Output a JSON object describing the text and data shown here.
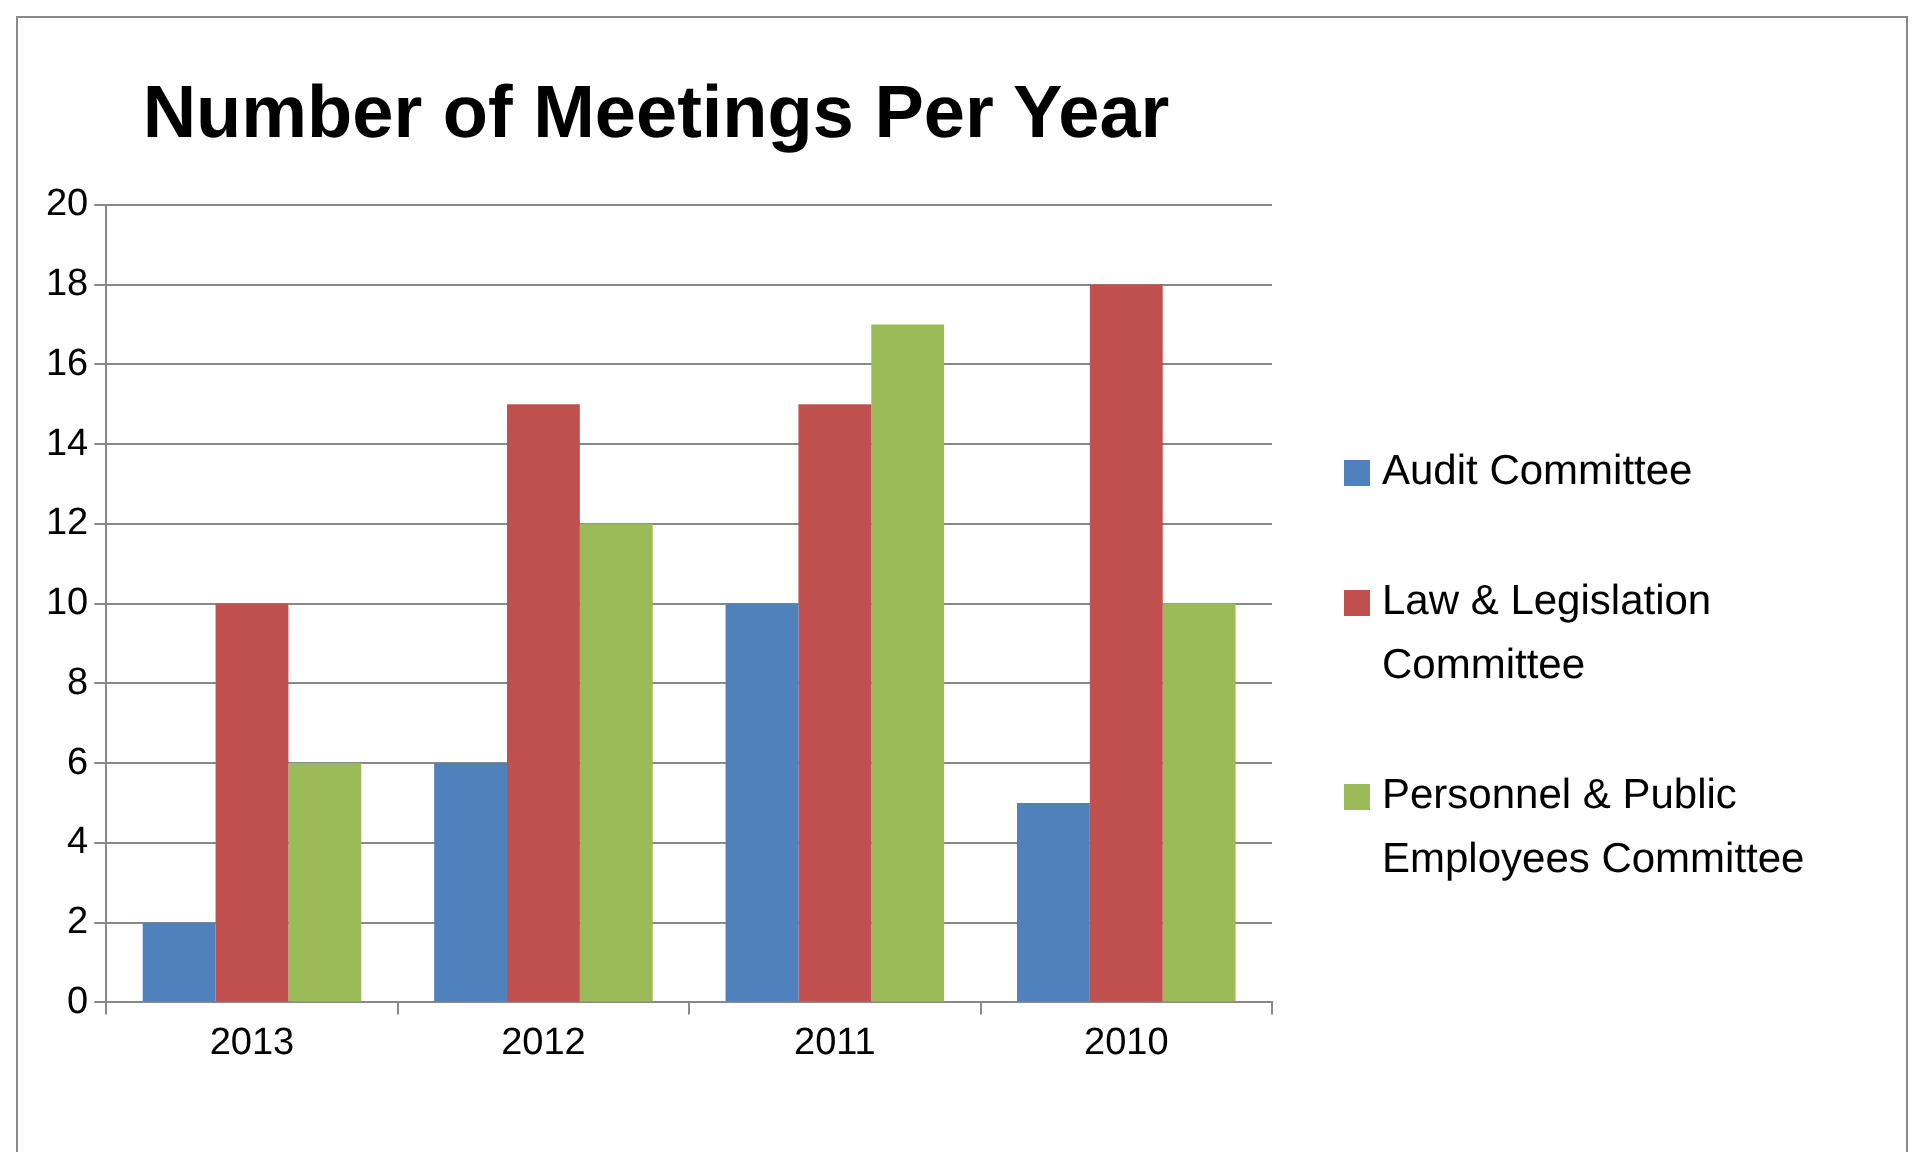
{
  "chart_data": {
    "type": "bar",
    "title": "Number of Meetings Per Year",
    "categories": [
      "2013",
      "2012",
      "2011",
      "2010"
    ],
    "series": [
      {
        "name": "Audit Committee",
        "color": "#4f81bd",
        "values": [
          2,
          6,
          10,
          5
        ]
      },
      {
        "name": "Law & Legislation Committee",
        "color": "#c0504d",
        "values": [
          10,
          15,
          15,
          18
        ]
      },
      {
        "name": "Personnel & Public Employees Committee",
        "color": "#9bbb59",
        "values": [
          6,
          12,
          17,
          10
        ]
      }
    ],
    "ylim": [
      0,
      20
    ],
    "yticks": [
      0,
      2,
      4,
      6,
      8,
      10,
      12,
      14,
      16,
      18,
      20
    ],
    "grid": "y",
    "legend": "right"
  }
}
